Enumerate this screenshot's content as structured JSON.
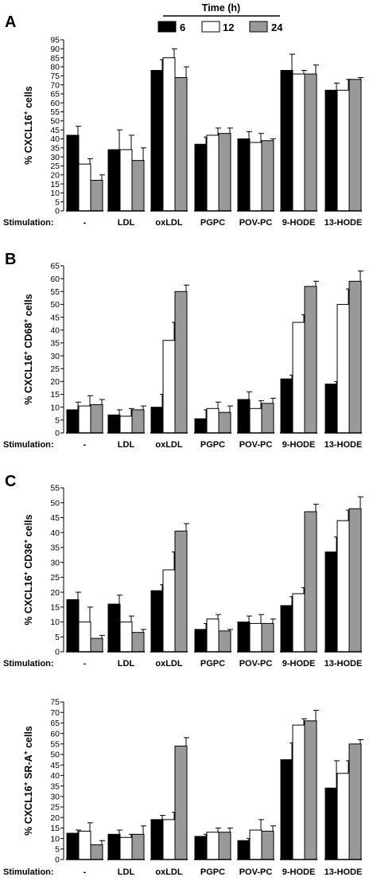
{
  "legend": {
    "title": "Time (h)",
    "items": [
      {
        "label": "6",
        "color": "#000000"
      },
      {
        "label": "12",
        "color": "#ffffff"
      },
      {
        "label": "24",
        "color": "#999999"
      }
    ]
  },
  "stimulation_label": "Stimulation:",
  "chart_data": [
    {
      "type": "bar",
      "panel": "A",
      "ylabel": "% CXCL16",
      "ylabel_sup": "+",
      "ylabel_suffix": " cells",
      "ylim": [
        0,
        95
      ],
      "yticks": [
        0,
        5,
        10,
        15,
        20,
        25,
        30,
        35,
        40,
        45,
        50,
        55,
        60,
        65,
        70,
        75,
        80,
        85,
        90,
        95
      ],
      "categories": [
        "-",
        "LDL",
        "oxLDL",
        "PGPC",
        "POV-PC",
        "9-HODE",
        "13-HODE"
      ],
      "series": [
        {
          "name": "6",
          "values": [
            42,
            34,
            78,
            37,
            40,
            78,
            67
          ],
          "errors": [
            5,
            11,
            6,
            4,
            4,
            9,
            4
          ]
        },
        {
          "name": "12",
          "values": [
            26,
            34,
            85,
            42,
            38,
            76,
            67
          ],
          "errors": [
            3,
            8,
            5,
            4,
            5,
            2,
            6
          ]
        },
        {
          "name": "24",
          "values": [
            17,
            28,
            74,
            43,
            39,
            76,
            73
          ],
          "errors": [
            3,
            7,
            6,
            3,
            1,
            5,
            1
          ]
        }
      ]
    },
    {
      "type": "bar",
      "panel": "B",
      "ylabel": "% CXCL16",
      "ylabel_sup": "+",
      "ylabel_mid": " CD68",
      "ylabel_sup2": "+",
      "ylabel_suffix": " cells",
      "ylim": [
        0,
        65
      ],
      "yticks": [
        0,
        5,
        10,
        15,
        20,
        25,
        30,
        35,
        40,
        45,
        50,
        55,
        60,
        65
      ],
      "categories": [
        "-",
        "LDL",
        "oxLDL",
        "PGPC",
        "POV-PC",
        "9-HODE",
        "13-HODE"
      ],
      "series": [
        {
          "name": "6",
          "values": [
            9,
            7,
            10,
            5.5,
            13,
            21,
            19
          ],
          "errors": [
            3,
            2,
            5,
            3.5,
            3,
            1.5,
            1
          ]
        },
        {
          "name": "12",
          "values": [
            10.5,
            6.5,
            36,
            9.5,
            9.5,
            43,
            50
          ],
          "errors": [
            4,
            3,
            7,
            2.5,
            3,
            3,
            6
          ]
        },
        {
          "name": "24",
          "values": [
            11,
            9,
            55,
            8,
            11.5,
            57,
            59
          ],
          "errors": [
            2,
            1.5,
            2.5,
            2.5,
            2,
            2,
            4
          ]
        }
      ]
    },
    {
      "type": "bar",
      "panel": "C",
      "ylabel": "% CXCL16",
      "ylabel_sup": "+",
      "ylabel_mid": " CD36",
      "ylabel_sup2": "+",
      "ylabel_suffix": " cells",
      "ylim": [
        0,
        55
      ],
      "yticks": [
        0,
        5,
        10,
        15,
        20,
        25,
        30,
        35,
        40,
        45,
        50,
        55
      ],
      "categories": [
        "-",
        "LDL",
        "oxLDL",
        "PGPC",
        "POV-PC",
        "9-HODE",
        "13-HODE"
      ],
      "series": [
        {
          "name": "6",
          "values": [
            17.5,
            16,
            20.5,
            7.5,
            10,
            15.5,
            33.5
          ],
          "errors": [
            2.5,
            3,
            2,
            2,
            2,
            3,
            5
          ]
        },
        {
          "name": "12",
          "values": [
            10,
            10,
            27.5,
            11,
            9.5,
            19.5,
            44
          ],
          "errors": [
            5,
            2,
            6,
            1.5,
            3,
            2,
            3.5
          ]
        },
        {
          "name": "24",
          "values": [
            4.5,
            6.5,
            40.5,
            7,
            9.5,
            47,
            48
          ],
          "errors": [
            1,
            1,
            2.5,
            0.5,
            1.5,
            2.5,
            4
          ]
        }
      ]
    },
    {
      "type": "bar",
      "panel": "",
      "ylabel": "% CXCL16",
      "ylabel_sup": "+",
      "ylabel_mid": " SR-A",
      "ylabel_sup2": "+",
      "ylabel_suffix": " cells",
      "ylim": [
        0,
        75
      ],
      "yticks": [
        0,
        5,
        10,
        15,
        20,
        25,
        30,
        35,
        40,
        45,
        50,
        55,
        60,
        65,
        70,
        75
      ],
      "categories": [
        "-",
        "LDL",
        "oxLDL",
        "PGPC",
        "POV-PC",
        "9-HODE",
        "13-HODE"
      ],
      "series": [
        {
          "name": "6",
          "values": [
            12.5,
            12,
            19,
            11,
            9,
            47.5,
            34
          ],
          "errors": [
            1.5,
            2,
            2,
            1,
            1,
            8,
            13
          ]
        },
        {
          "name": "12",
          "values": [
            13.5,
            10.5,
            19,
            13,
            14,
            64,
            41
          ],
          "errors": [
            4,
            1.5,
            3.5,
            2,
            5,
            3,
            6
          ]
        },
        {
          "name": "24",
          "values": [
            7,
            12,
            54,
            13,
            13.5,
            66,
            55
          ],
          "errors": [
            2,
            4,
            4,
            2,
            2.5,
            5,
            2
          ]
        }
      ]
    }
  ]
}
